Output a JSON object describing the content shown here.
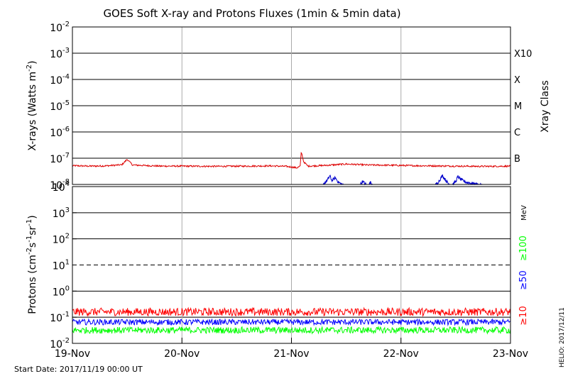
{
  "title": "GOES Soft X-ray and Protons Fluxes   (1min & 5min data)",
  "footer": {
    "start_date": "Start Date: 2017/11/19 00:00 UT",
    "credit": "HELIO: 2017/12/11"
  },
  "colors": {
    "xray_long": "#dd0000",
    "xray_short": "#0000cc",
    "proton_10": "#ff0000",
    "proton_50": "#0000ff",
    "proton_100": "#00ff00",
    "grid": "#000000",
    "day_divider": "#aaaaaa"
  },
  "chart_data": [
    {
      "type": "line",
      "panel": "xray",
      "ylabel_main": "X-rays (Watts m",
      "ylabel_exp": "-2",
      "ylabel_close": ")",
      "yscale": "log",
      "ylim": [
        1e-08,
        0.01
      ],
      "yticks": [
        {
          "base": "10",
          "exp": "-8"
        },
        {
          "base": "10",
          "exp": "-7"
        },
        {
          "base": "10",
          "exp": "-6"
        },
        {
          "base": "10",
          "exp": "-5"
        },
        {
          "base": "10",
          "exp": "-4"
        },
        {
          "base": "10",
          "exp": "-3"
        },
        {
          "base": "10",
          "exp": "-2"
        }
      ],
      "right_axis_label": "Xray Class",
      "class_labels": [
        {
          "label": "B",
          "value": 1e-07
        },
        {
          "label": "C",
          "value": 1e-06
        },
        {
          "label": "M",
          "value": 1e-05
        },
        {
          "label": "X",
          "value": 0.0001
        },
        {
          "label": "X10",
          "value": 0.001
        }
      ],
      "x_unit": "days since 19-Nov 00:00",
      "series": [
        {
          "color_key": "xray_long",
          "points": [
            [
              0,
              5.2e-08
            ],
            [
              0.15,
              5e-08
            ],
            [
              0.3,
              5.1e-08
            ],
            [
              0.45,
              5.6e-08
            ],
            [
              0.5,
              9e-08
            ],
            [
              0.55,
              5.5e-08
            ],
            [
              0.8,
              5e-08
            ],
            [
              1.0,
              5e-08
            ],
            [
              1.3,
              4.9e-08
            ],
            [
              1.6,
              5e-08
            ],
            [
              1.8,
              5.1e-08
            ],
            [
              1.95,
              4.9e-08
            ],
            [
              2.0,
              4.6e-08
            ],
            [
              2.05,
              4.3e-08
            ],
            [
              2.08,
              5e-08
            ],
            [
              2.09,
              1.8e-07
            ],
            [
              2.11,
              7.5e-08
            ],
            [
              2.15,
              5e-08
            ],
            [
              2.3,
              5.3e-08
            ],
            [
              2.5,
              6e-08
            ],
            [
              2.7,
              5.5e-08
            ],
            [
              2.9,
              5.4e-08
            ],
            [
              3.1,
              5.2e-08
            ],
            [
              3.3,
              5.1e-08
            ],
            [
              3.5,
              5e-08
            ],
            [
              3.7,
              4.9e-08
            ],
            [
              3.8,
              4.9e-08
            ],
            [
              4.0,
              5e-08
            ]
          ]
        },
        {
          "color_key": "xray_short",
          "points": [
            [
              2.28,
              8e-09
            ],
            [
              2.3,
              1.1e-08
            ],
            [
              2.33,
              1.5e-08
            ],
            [
              2.35,
              2.1e-08
            ],
            [
              2.37,
              1.4e-08
            ],
            [
              2.4,
              1.8e-08
            ],
            [
              2.43,
              1.2e-08
            ],
            [
              2.46,
              1e-08
            ],
            [
              2.5,
              8e-09
            ],
            [
              2.62,
              9e-09
            ],
            [
              2.65,
              1.3e-08
            ],
            [
              2.68,
              1e-08
            ],
            [
              2.7,
              8e-09
            ],
            [
              2.72,
              1.2e-08
            ],
            [
              2.75,
              9e-09
            ],
            [
              2.78,
              7e-09
            ],
            [
              3.3,
              8e-09
            ],
            [
              3.35,
              1.4e-08
            ],
            [
              3.38,
              2.2e-08
            ],
            [
              3.4,
              1.6e-08
            ],
            [
              3.43,
              1.1e-08
            ],
            [
              3.46,
              9e-09
            ],
            [
              3.5,
              1.3e-08
            ],
            [
              3.52,
              2e-08
            ],
            [
              3.55,
              1.5e-08
            ],
            [
              3.6,
              1.2e-08
            ],
            [
              3.65,
              1.1e-08
            ],
            [
              3.7,
              1e-08
            ],
            [
              3.75,
              9e-09
            ],
            [
              3.8,
              8e-09
            ],
            [
              3.85,
              7e-09
            ]
          ]
        }
      ]
    },
    {
      "type": "line",
      "panel": "protons",
      "ylabel_main": "Protons (cm",
      "ylabel_exp1": "-2",
      "ylabel_mid1": "s",
      "ylabel_exp2": "-1",
      "ylabel_mid2": "sr",
      "ylabel_exp3": "-1",
      "ylabel_close": ")",
      "yscale": "log",
      "ylim": [
        0.01,
        10000
      ],
      "yticks": [
        {
          "base": "10",
          "exp": "-2"
        },
        {
          "base": "10",
          "exp": "-1"
        },
        {
          "base": "10",
          "exp": "0"
        },
        {
          "base": "10",
          "exp": "1"
        },
        {
          "base": "10",
          "exp": "2"
        },
        {
          "base": "10",
          "exp": "3"
        },
        {
          "base": "10",
          "exp": "4"
        }
      ],
      "dashed_threshold": 10,
      "right_labels": [
        {
          "text": "MeV",
          "color_key": "grid"
        },
        {
          "text": "≥100",
          "color_key": "proton_100"
        },
        {
          "text": "≥50",
          "color_key": "proton_50"
        },
        {
          "text": "≥10",
          "color_key": "proton_10"
        }
      ],
      "series": [
        {
          "name": "≥10",
          "color_key": "proton_10",
          "mean": 0.16,
          "spread": 0.3
        },
        {
          "name": "≥50",
          "color_key": "proton_50",
          "mean": 0.065,
          "spread": 0.22
        },
        {
          "name": "≥100",
          "color_key": "proton_100",
          "mean": 0.032,
          "spread": 0.25
        }
      ]
    }
  ],
  "x_axis": {
    "range_days": [
      0,
      4
    ],
    "ticks": [
      "19-Nov",
      "20-Nov",
      "21-Nov",
      "22-Nov",
      "23-Nov"
    ]
  }
}
